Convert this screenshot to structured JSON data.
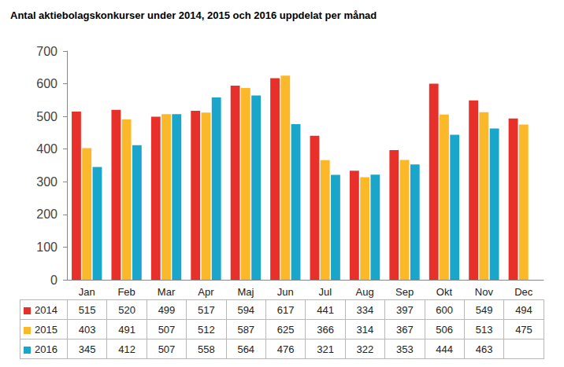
{
  "chart_data": {
    "type": "bar",
    "title": "Antal aktiebolagskonkurser under 2014, 2015 och 2016 uppdelat per månad",
    "categories": [
      "Jan",
      "Feb",
      "Mar",
      "Apr",
      "Maj",
      "Jun",
      "Jul",
      "Aug",
      "Sep",
      "Okt",
      "Nov",
      "Dec"
    ],
    "series": [
      {
        "name": "2014",
        "color": "#e8302a",
        "values": [
          515,
          520,
          499,
          517,
          594,
          617,
          441,
          334,
          397,
          600,
          549,
          494
        ]
      },
      {
        "name": "2015",
        "color": "#fbb829",
        "values": [
          403,
          491,
          507,
          512,
          587,
          625,
          366,
          314,
          367,
          506,
          513,
          475
        ]
      },
      {
        "name": "2016",
        "color": "#1aa6cb",
        "values": [
          345,
          412,
          507,
          558,
          564,
          476,
          321,
          322,
          353,
          444,
          463,
          null
        ]
      }
    ],
    "ylim": [
      0,
      700
    ],
    "yticks": [
      0,
      100,
      200,
      300,
      400,
      500,
      600,
      700
    ],
    "grid": false
  }
}
